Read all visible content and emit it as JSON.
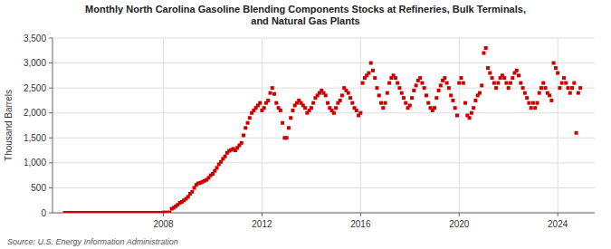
{
  "chart_data": {
    "type": "scatter",
    "title": "Monthly North Carolina Gasoline Blending Components Stocks at Refineries, Bulk Terminals,\nand Natural Gas Plants",
    "ylabel": "Thousand Barrels",
    "source": "Source: U.S. Energy Information Administration",
    "color": "#CC0000",
    "marker": "square",
    "grid": true,
    "xlim": [
      2003.5,
      2025.5
    ],
    "xticks": [
      2008,
      2012,
      2016,
      2020,
      2024
    ],
    "ylim": [
      0,
      3500
    ],
    "yticks": [
      0,
      500,
      {
        "value": 1000,
        "label": "1,000"
      },
      {
        "value": 1500,
        "label": "1,500"
      },
      {
        "value": 2000,
        "label": "2,000"
      },
      {
        "value": 2500,
        "label": "2,500"
      },
      {
        "value": 3000,
        "label": "3,000"
      },
      {
        "value": 3500,
        "label": "3,500"
      }
    ],
    "x": [
      2004.0,
      2004.083,
      2004.167,
      2004.25,
      2004.333,
      2004.417,
      2004.5,
      2004.583,
      2004.667,
      2004.75,
      2004.833,
      2004.917,
      2005.0,
      2005.083,
      2005.167,
      2005.25,
      2005.333,
      2005.417,
      2005.5,
      2005.583,
      2005.667,
      2005.75,
      2005.833,
      2005.917,
      2006.0,
      2006.083,
      2006.167,
      2006.25,
      2006.333,
      2006.417,
      2006.5,
      2006.583,
      2006.667,
      2006.75,
      2006.833,
      2006.917,
      2007.0,
      2007.083,
      2007.167,
      2007.25,
      2007.333,
      2007.417,
      2007.5,
      2007.583,
      2007.667,
      2007.75,
      2007.833,
      2007.917,
      2008.0,
      2008.083,
      2008.167,
      2008.25,
      2008.333,
      2008.417,
      2008.5,
      2008.583,
      2008.667,
      2008.75,
      2008.833,
      2008.917,
      2009.0,
      2009.083,
      2009.167,
      2009.25,
      2009.333,
      2009.417,
      2009.5,
      2009.583,
      2009.667,
      2009.75,
      2009.833,
      2009.917,
      2010.0,
      2010.083,
      2010.167,
      2010.25,
      2010.333,
      2010.417,
      2010.5,
      2010.583,
      2010.667,
      2010.75,
      2010.833,
      2010.917,
      2011.0,
      2011.083,
      2011.167,
      2011.25,
      2011.333,
      2011.417,
      2011.5,
      2011.583,
      2011.667,
      2011.75,
      2011.833,
      2011.917,
      2012.0,
      2012.083,
      2012.167,
      2012.25,
      2012.333,
      2012.417,
      2012.5,
      2012.583,
      2012.667,
      2012.75,
      2012.833,
      2012.917,
      2013.0,
      2013.083,
      2013.167,
      2013.25,
      2013.333,
      2013.417,
      2013.5,
      2013.583,
      2013.667,
      2013.75,
      2013.833,
      2013.917,
      2014.0,
      2014.083,
      2014.167,
      2014.25,
      2014.333,
      2014.417,
      2014.5,
      2014.583,
      2014.667,
      2014.75,
      2014.833,
      2014.917,
      2015.0,
      2015.083,
      2015.167,
      2015.25,
      2015.333,
      2015.417,
      2015.5,
      2015.583,
      2015.667,
      2015.75,
      2015.833,
      2015.917,
      2016.0,
      2016.083,
      2016.167,
      2016.25,
      2016.333,
      2016.417,
      2016.5,
      2016.583,
      2016.667,
      2016.75,
      2016.833,
      2016.917,
      2017.0,
      2017.083,
      2017.167,
      2017.25,
      2017.333,
      2017.417,
      2017.5,
      2017.583,
      2017.667,
      2017.75,
      2017.833,
      2017.917,
      2018.0,
      2018.083,
      2018.167,
      2018.25,
      2018.333,
      2018.417,
      2018.5,
      2018.583,
      2018.667,
      2018.75,
      2018.833,
      2018.917,
      2019.0,
      2019.083,
      2019.167,
      2019.25,
      2019.333,
      2019.417,
      2019.5,
      2019.583,
      2019.667,
      2019.75,
      2019.833,
      2019.917,
      2020.0,
      2020.083,
      2020.167,
      2020.25,
      2020.333,
      2020.417,
      2020.5,
      2020.583,
      2020.667,
      2020.75,
      2020.833,
      2020.917,
      2021.0,
      2021.083,
      2021.167,
      2021.25,
      2021.333,
      2021.417,
      2021.5,
      2021.583,
      2021.667,
      2021.75,
      2021.833,
      2021.917,
      2022.0,
      2022.083,
      2022.167,
      2022.25,
      2022.333,
      2022.417,
      2022.5,
      2022.583,
      2022.667,
      2022.75,
      2022.833,
      2022.917,
      2023.0,
      2023.083,
      2023.167,
      2023.25,
      2023.333,
      2023.417,
      2023.5,
      2023.583,
      2023.667,
      2023.75,
      2023.833,
      2023.917,
      2024.0,
      2024.083,
      2024.167,
      2024.25,
      2024.333,
      2024.417,
      2024.5,
      2024.583,
      2024.667,
      2024.75,
      2024.833,
      2024.917
    ],
    "values": [
      0,
      0,
      0,
      0,
      0,
      0,
      0,
      0,
      0,
      0,
      0,
      0,
      0,
      0,
      0,
      0,
      0,
      0,
      0,
      0,
      0,
      0,
      0,
      0,
      0,
      0,
      0,
      0,
      0,
      0,
      0,
      0,
      0,
      0,
      0,
      0,
      0,
      0,
      0,
      0,
      0,
      0,
      0,
      0,
      0,
      0,
      0,
      0,
      5,
      5,
      5,
      5,
      80,
      100,
      130,
      160,
      200,
      220,
      250,
      280,
      320,
      380,
      420,
      500,
      560,
      590,
      600,
      620,
      640,
      660,
      700,
      750,
      780,
      840,
      900,
      970,
      1020,
      1080,
      1130,
      1200,
      1240,
      1260,
      1280,
      1250,
      1300,
      1350,
      1400,
      1550,
      1700,
      1800,
      1900,
      2000,
      2050,
      2100,
      2150,
      2200,
      2050,
      2100,
      2200,
      2250,
      2400,
      2500,
      2380,
      2200,
      2100,
      2050,
      1800,
      1500,
      1500,
      1700,
      1900,
      2050,
      2150,
      2200,
      2250,
      2200,
      2150,
      2100,
      2000,
      2050,
      2100,
      2200,
      2300,
      2350,
      2400,
      2450,
      2400,
      2350,
      2200,
      2100,
      2050,
      2000,
      2100,
      2200,
      2250,
      2350,
      2500,
      2450,
      2400,
      2300,
      2200,
      2100,
      2050,
      1950,
      2000,
      2600,
      2700,
      2750,
      2800,
      3000,
      2850,
      2700,
      2500,
      2350,
      2200,
      2100,
      2200,
      2400,
      2600,
      2700,
      2750,
      2700,
      2600,
      2500,
      2400,
      2300,
      2200,
      2100,
      2150,
      2300,
      2450,
      2550,
      2650,
      2700,
      2600,
      2500,
      2350,
      2200,
      2100,
      2050,
      2100,
      2300,
      2450,
      2550,
      2650,
      2700,
      2600,
      2500,
      2350,
      2250,
      2100,
      1950,
      2600,
      2700,
      2600,
      2200,
      1950,
      1900,
      2000,
      2100,
      2250,
      2350,
      2400,
      2550,
      3200,
      3300,
      2900,
      2800,
      2700,
      2600,
      2500,
      2600,
      2700,
      2750,
      2700,
      2600,
      2500,
      2600,
      2700,
      2800,
      2850,
      2750,
      2600,
      2500,
      2400,
      2300,
      2200,
      2100,
      2200,
      2100,
      2200,
      2400,
      2500,
      2600,
      2500,
      2400,
      2350,
      2250,
      3000,
      2900,
      2800,
      2500,
      2600,
      2700,
      2600,
      2500,
      2400,
      2500,
      2600,
      1600,
      2400,
      2500
    ]
  }
}
